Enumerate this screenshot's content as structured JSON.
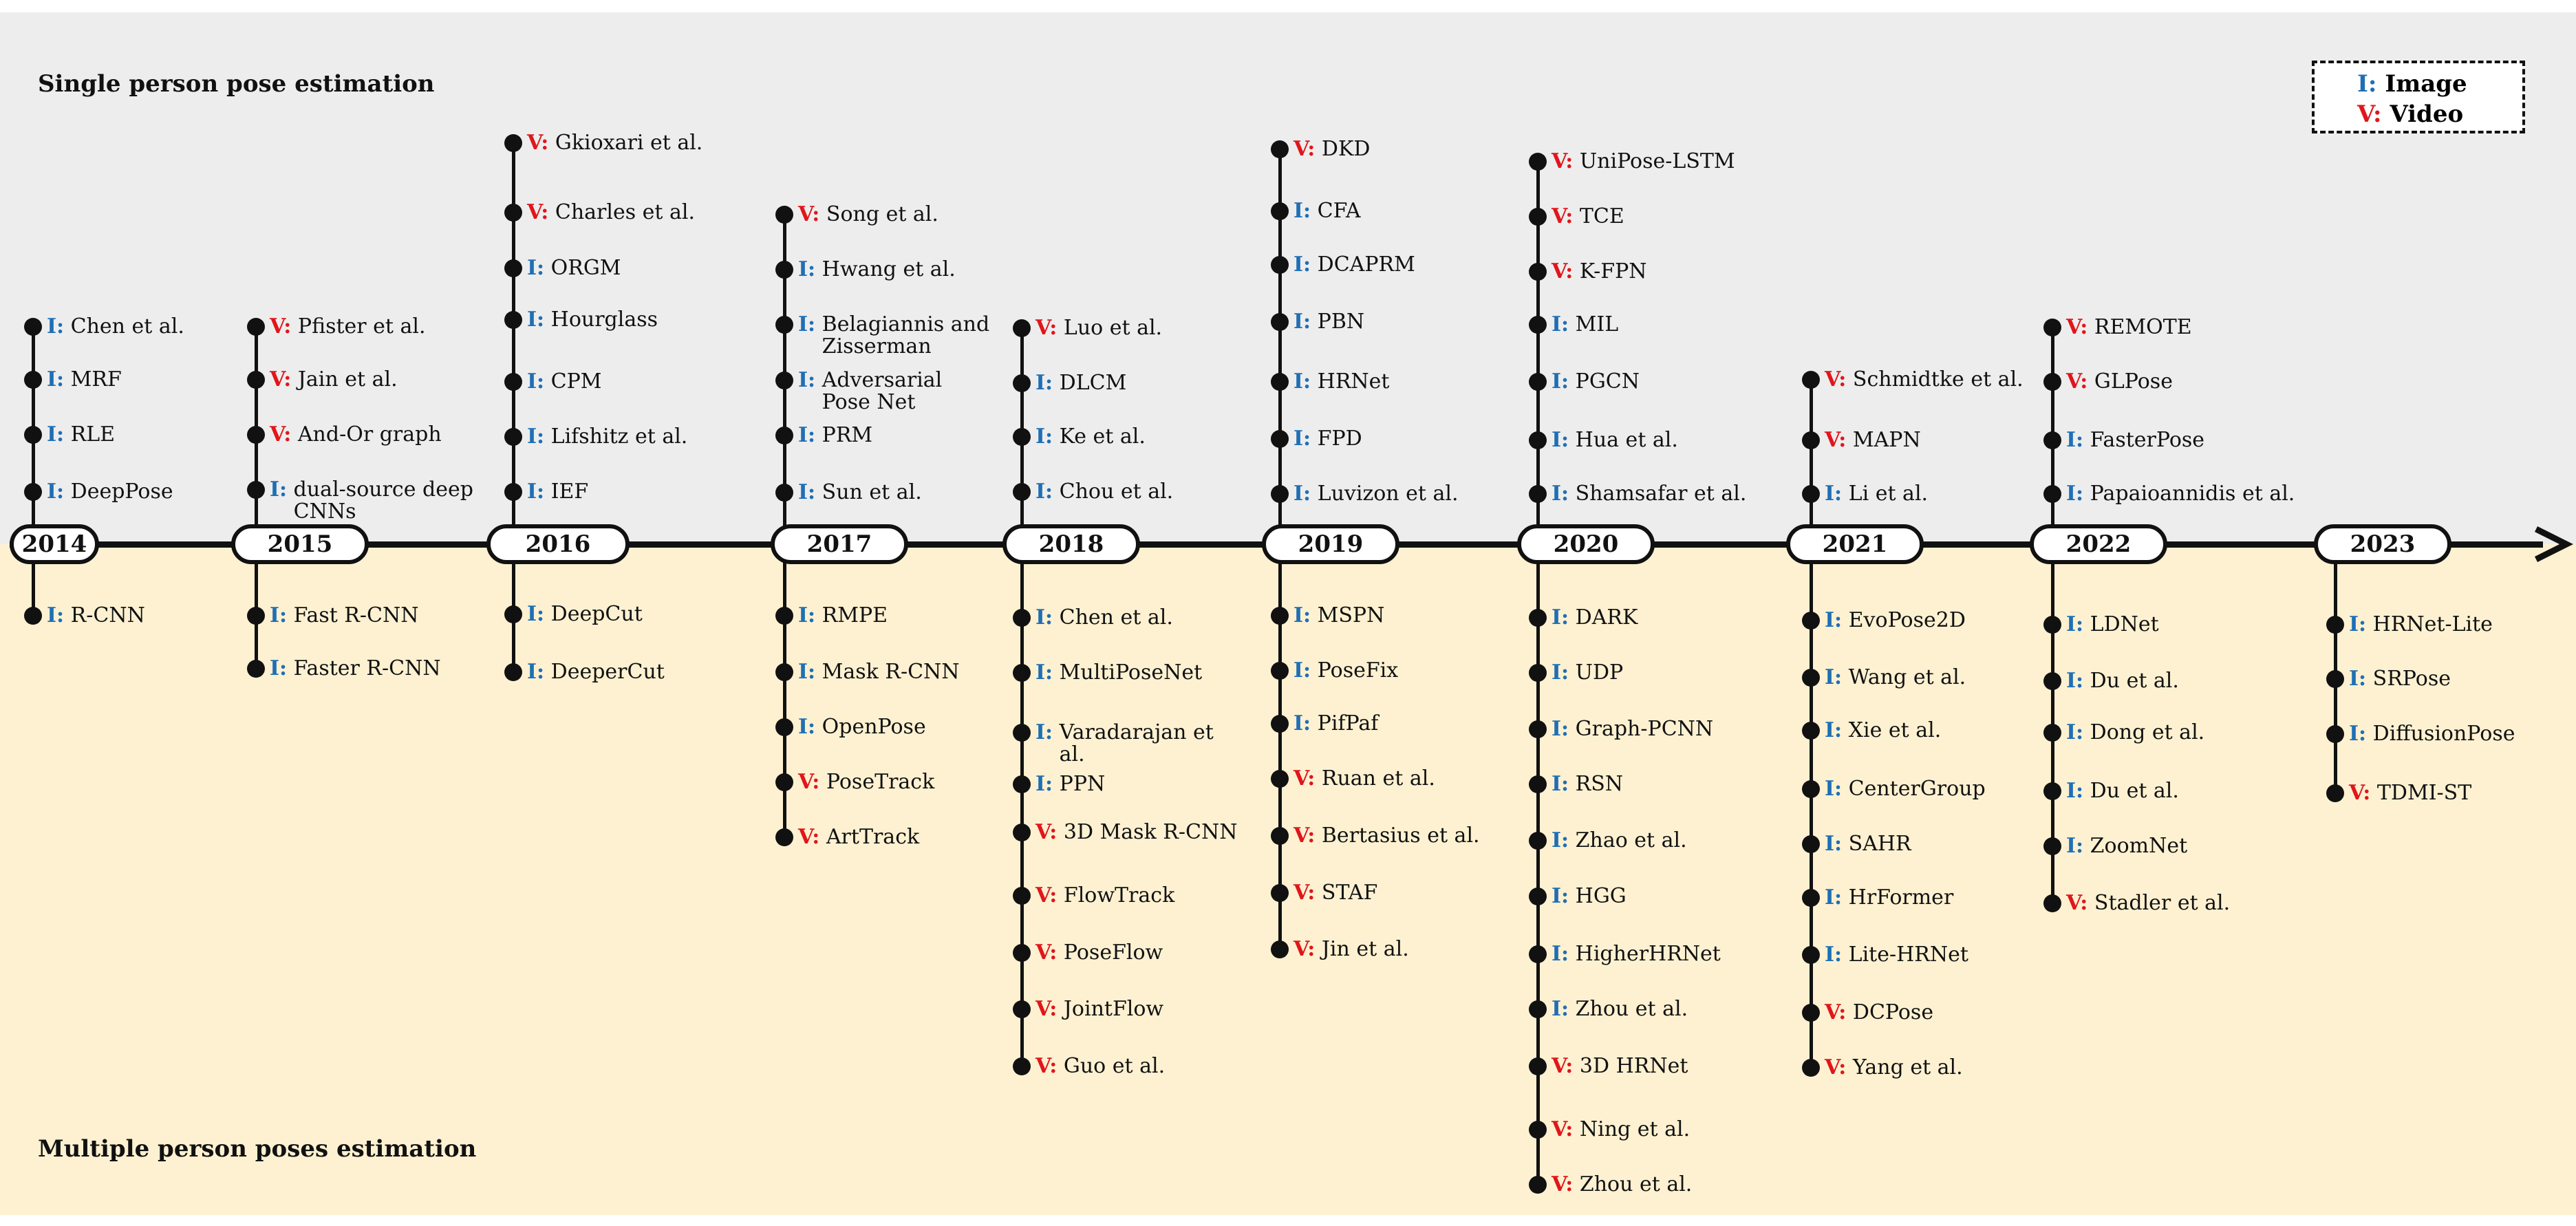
{
  "titles": {
    "single": "Single person pose estimation",
    "multiple": "Multiple person poses estimation"
  },
  "legend": {
    "image_tag": "I:",
    "image_label": "Image",
    "video_tag": "V:",
    "video_label": "Video"
  },
  "colors": {
    "image_tag": "#1f6fb5",
    "video_tag": "#e0161b",
    "top_band": "#ededed",
    "bottom_band": "#fdf1d1"
  },
  "years": [
    {
      "year": "2014",
      "above": [
        {
          "tag": "I:",
          "text": "Chen et al."
        },
        {
          "tag": "I:",
          "text": "MRF"
        },
        {
          "tag": "I:",
          "text": "RLE"
        },
        {
          "tag": "I:",
          "text": "DeepPose"
        }
      ],
      "below": [
        {
          "tag": "I:",
          "text": "R-CNN"
        }
      ]
    },
    {
      "year": "2015",
      "above": [
        {
          "tag": "V:",
          "text": "Pfister et al."
        },
        {
          "tag": "V:",
          "text": "Jain et al."
        },
        {
          "tag": "V:",
          "text": "And-Or graph"
        },
        {
          "tag": "I:",
          "text": "dual-source deep\nCNNs"
        }
      ],
      "below": [
        {
          "tag": "I:",
          "text": "Fast R-CNN"
        },
        {
          "tag": "I:",
          "text": "Faster R-CNN"
        }
      ]
    },
    {
      "year": "2016",
      "above": [
        {
          "tag": "V:",
          "text": "Gkioxari et al."
        },
        {
          "tag": "V:",
          "text": "Charles et al."
        },
        {
          "tag": "I:",
          "text": "ORGM"
        },
        {
          "tag": "I:",
          "text": "Hourglass"
        },
        {
          "tag": "I:",
          "text": "CPM"
        },
        {
          "tag": "I:",
          "text": "Lifshitz et al."
        },
        {
          "tag": "I:",
          "text": "IEF"
        }
      ],
      "below": [
        {
          "tag": "I:",
          "text": "DeepCut"
        },
        {
          "tag": "I:",
          "text": "DeeperCut"
        }
      ]
    },
    {
      "year": "2017",
      "above": [
        {
          "tag": "V:",
          "text": "Song et al."
        },
        {
          "tag": "I:",
          "text": "Hwang et al."
        },
        {
          "tag": "I:",
          "text": "Belagiannis and\nZisserman"
        },
        {
          "tag": "I:",
          "text": "Adversarial\nPose Net"
        },
        {
          "tag": "I:",
          "text": "PRM"
        },
        {
          "tag": "I:",
          "text": "Sun et al."
        }
      ],
      "below": [
        {
          "tag": "I:",
          "text": "RMPE"
        },
        {
          "tag": "I:",
          "text": "Mask R-CNN"
        },
        {
          "tag": "I:",
          "text": "OpenPose"
        },
        {
          "tag": "V:",
          "text": "PoseTrack"
        },
        {
          "tag": "V:",
          "text": "ArtTrack"
        }
      ]
    },
    {
      "year": "2018",
      "above": [
        {
          "tag": "V:",
          "text": "Luo et al."
        },
        {
          "tag": "I:",
          "text": "DLCM"
        },
        {
          "tag": "I:",
          "text": "Ke et al."
        },
        {
          "tag": "I:",
          "text": "Chou et al."
        }
      ],
      "below": [
        {
          "tag": "I:",
          "text": "Chen et al."
        },
        {
          "tag": "I:",
          "text": "MultiPoseNet"
        },
        {
          "tag": "I:",
          "text": "Varadarajan et\nal."
        },
        {
          "tag": "I:",
          "text": "PPN"
        },
        {
          "tag": "V:",
          "text": "3D Mask R-CNN"
        },
        {
          "tag": "V:",
          "text": "FlowTrack"
        },
        {
          "tag": "V:",
          "text": "PoseFlow"
        },
        {
          "tag": "V:",
          "text": "JointFlow"
        },
        {
          "tag": "V:",
          "text": "Guo et al."
        }
      ]
    },
    {
      "year": "2019",
      "above": [
        {
          "tag": "V:",
          "text": "DKD"
        },
        {
          "tag": "I:",
          "text": "CFA"
        },
        {
          "tag": "I:",
          "text": "DCAPRM"
        },
        {
          "tag": "I:",
          "text": "PBN"
        },
        {
          "tag": "I:",
          "text": "HRNet"
        },
        {
          "tag": "I:",
          "text": "FPD"
        },
        {
          "tag": "I:",
          "text": "Luvizon et al."
        }
      ],
      "below": [
        {
          "tag": "I:",
          "text": "MSPN"
        },
        {
          "tag": "I:",
          "text": "PoseFix"
        },
        {
          "tag": "I:",
          "text": "PifPaf"
        },
        {
          "tag": "V:",
          "text": "Ruan et al."
        },
        {
          "tag": "V:",
          "text": "Bertasius et al."
        },
        {
          "tag": "V:",
          "text": "STAF"
        },
        {
          "tag": "V:",
          "text": "Jin et al."
        }
      ]
    },
    {
      "year": "2020",
      "above": [
        {
          "tag": "V:",
          "text": "UniPose-LSTM"
        },
        {
          "tag": "V:",
          "text": "TCE"
        },
        {
          "tag": "V:",
          "text": "K-FPN"
        },
        {
          "tag": "I:",
          "text": "MIL"
        },
        {
          "tag": "I:",
          "text": "PGCN"
        },
        {
          "tag": "I:",
          "text": "Hua et al."
        },
        {
          "tag": "I:",
          "text": "Shamsafar et al."
        }
      ],
      "below": [
        {
          "tag": "I:",
          "text": "DARK"
        },
        {
          "tag": "I:",
          "text": "UDP"
        },
        {
          "tag": "I:",
          "text": "Graph-PCNN"
        },
        {
          "tag": "I:",
          "text": "RSN"
        },
        {
          "tag": "I:",
          "text": "Zhao et al."
        },
        {
          "tag": "I:",
          "text": "HGG"
        },
        {
          "tag": "I:",
          "text": "HigherHRNet"
        },
        {
          "tag": "I:",
          "text": "Zhou et al."
        },
        {
          "tag": "V:",
          "text": "3D HRNet"
        },
        {
          "tag": "V:",
          "text": "Ning et al."
        },
        {
          "tag": "V:",
          "text": "Zhou et al."
        }
      ]
    },
    {
      "year": "2021",
      "above": [
        {
          "tag": "V:",
          "text": "Schmidtke et al."
        },
        {
          "tag": "V:",
          "text": "MAPN"
        },
        {
          "tag": "I:",
          "text": "Li et al."
        }
      ],
      "below": [
        {
          "tag": "I:",
          "text": "EvoPose2D"
        },
        {
          "tag": "I:",
          "text": "Wang et al."
        },
        {
          "tag": "I:",
          "text": "Xie et al."
        },
        {
          "tag": "I:",
          "text": "CenterGroup"
        },
        {
          "tag": "I:",
          "text": "SAHR"
        },
        {
          "tag": "I:",
          "text": "HrFormer"
        },
        {
          "tag": "I:",
          "text": "Lite-HRNet"
        },
        {
          "tag": "V:",
          "text": "DCPose"
        },
        {
          "tag": "V:",
          "text": "Yang et al."
        }
      ]
    },
    {
      "year": "2022",
      "above": [
        {
          "tag": "V:",
          "text": "REMOTE"
        },
        {
          "tag": "V:",
          "text": "GLPose"
        },
        {
          "tag": "I:",
          "text": "FasterPose"
        },
        {
          "tag": "I:",
          "text": "Papaioannidis et al."
        }
      ],
      "below": [
        {
          "tag": "I:",
          "text": "LDNet"
        },
        {
          "tag": "I:",
          "text": "Du et al."
        },
        {
          "tag": "I:",
          "text": "Dong et al."
        },
        {
          "tag": "I:",
          "text": "Du et al."
        },
        {
          "tag": "I:",
          "text": "ZoomNet"
        },
        {
          "tag": "V:",
          "text": "Stadler et al."
        }
      ]
    },
    {
      "year": "2023",
      "above": [],
      "below": [
        {
          "tag": "I:",
          "text": "HRNet-Lite"
        },
        {
          "tag": "I:",
          "text": "SRPose"
        },
        {
          "tag": "I:",
          "text": "DiffusionPose"
        },
        {
          "tag": "V:",
          "text": "TDMI-ST"
        }
      ]
    }
  ]
}
